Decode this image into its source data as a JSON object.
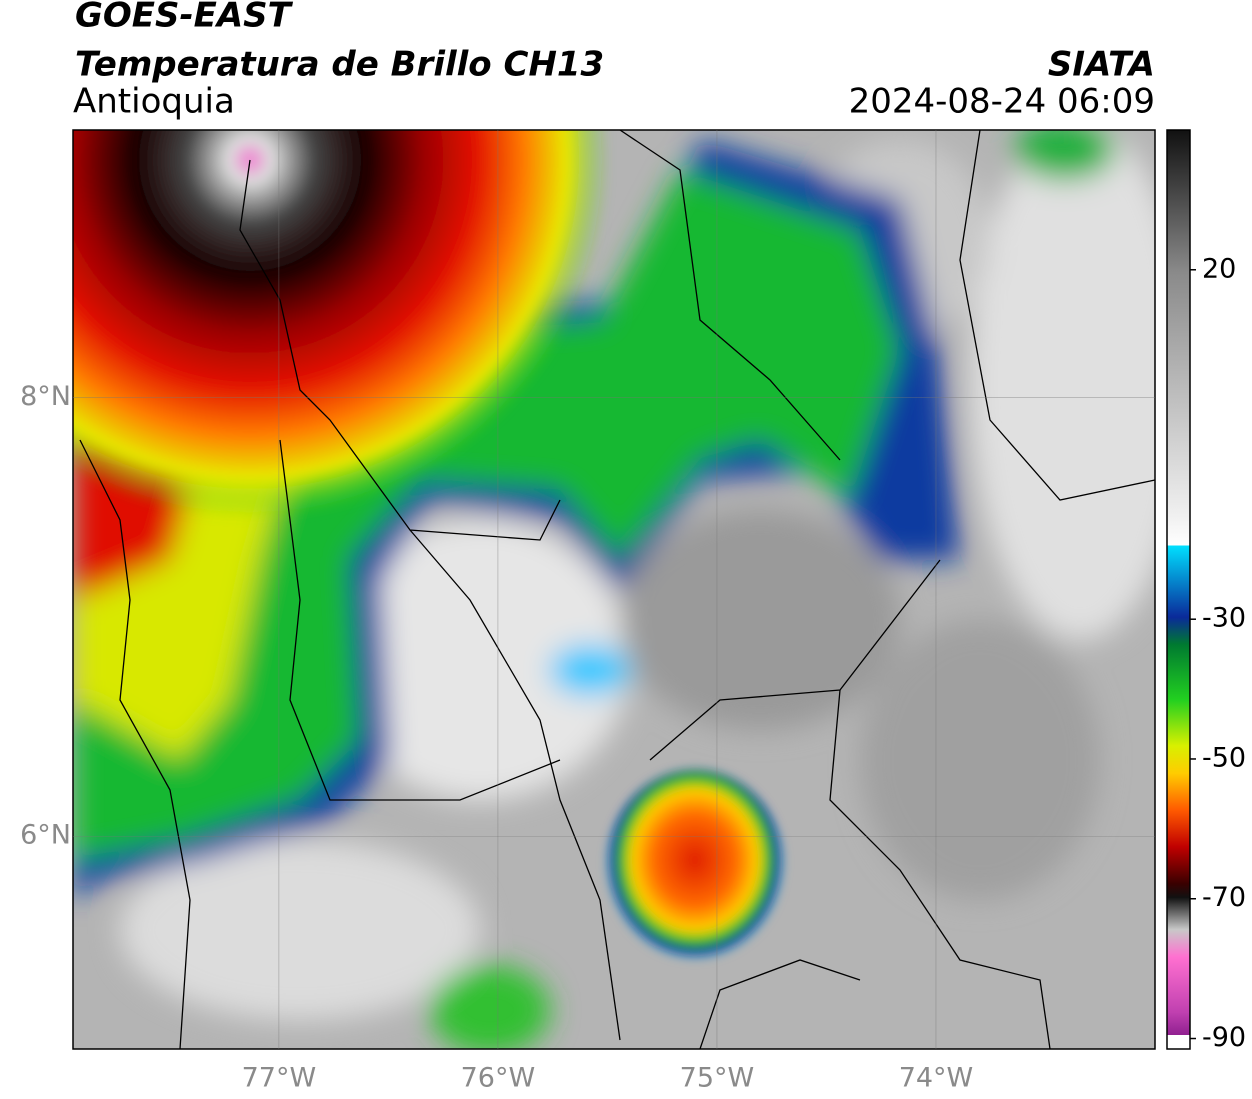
{
  "header": {
    "line1": "GOES-EAST",
    "title": "Temperatura de Brillo CH13",
    "region": "Antioquia",
    "source": "SIATA",
    "datetime": "2024-08-24 06:09"
  },
  "map": {
    "xlim": [
      -77.94,
      -73.0
    ],
    "ylim": [
      5.03,
      9.22
    ],
    "xticks": [
      {
        "value": -77,
        "label": "77°W"
      },
      {
        "value": -76,
        "label": "76°W"
      },
      {
        "value": -75,
        "label": "75°W"
      },
      {
        "value": -74,
        "label": "74°W"
      }
    ],
    "yticks": [
      {
        "value": 6,
        "label": "6°N"
      },
      {
        "value": 8,
        "label": "8°N"
      }
    ]
  },
  "colorbar": {
    "lim": [
      -91.5,
      40
    ],
    "ticks": [
      20,
      -30,
      -50,
      -70,
      -90
    ]
  }
}
